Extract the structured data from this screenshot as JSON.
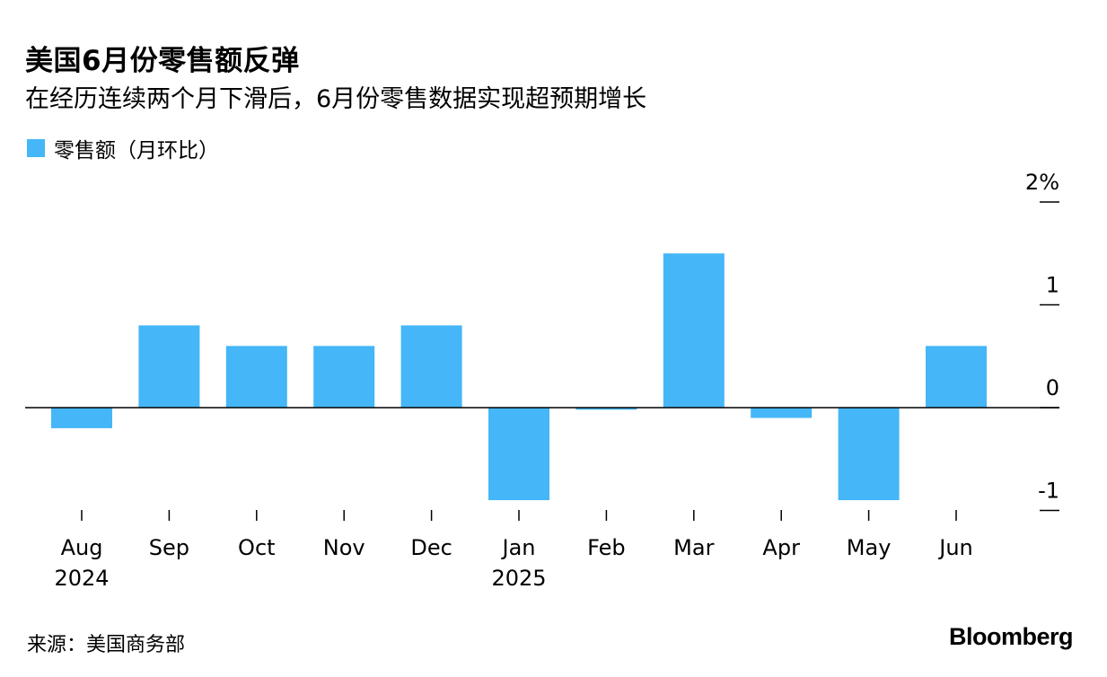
{
  "chart_data": {
    "type": "bar",
    "title": "美国6月份零售额反弹",
    "subtitle": "在经历连续两个月下滑后，6月份零售数据实现超预期增长",
    "categories": [
      "Aug",
      "Sep",
      "Oct",
      "Nov",
      "Dec",
      "Jan",
      "Feb",
      "Mar",
      "Apr",
      "May",
      "Jun"
    ],
    "category_years": {
      "Aug": "2024",
      "Jan": "2025"
    },
    "series": [
      {
        "name": "零售额（月环比）",
        "color": "#45b6f7",
        "values": [
          -0.2,
          0.8,
          0.6,
          0.6,
          0.8,
          -0.9,
          -0.02,
          1.5,
          -0.1,
          -0.9,
          0.6
        ]
      }
    ],
    "ylim": [
      -1,
      2
    ],
    "yticks": [
      {
        "value": 2,
        "label": "2%"
      },
      {
        "value": 1,
        "label": "1"
      },
      {
        "value": 0,
        "label": "0"
      },
      {
        "value": -1,
        "label": "-1"
      }
    ],
    "y_axis_position": "right",
    "grid": false,
    "legend_position": "top-left"
  },
  "source": "来源：美国商务部",
  "brand": "Bloomberg"
}
